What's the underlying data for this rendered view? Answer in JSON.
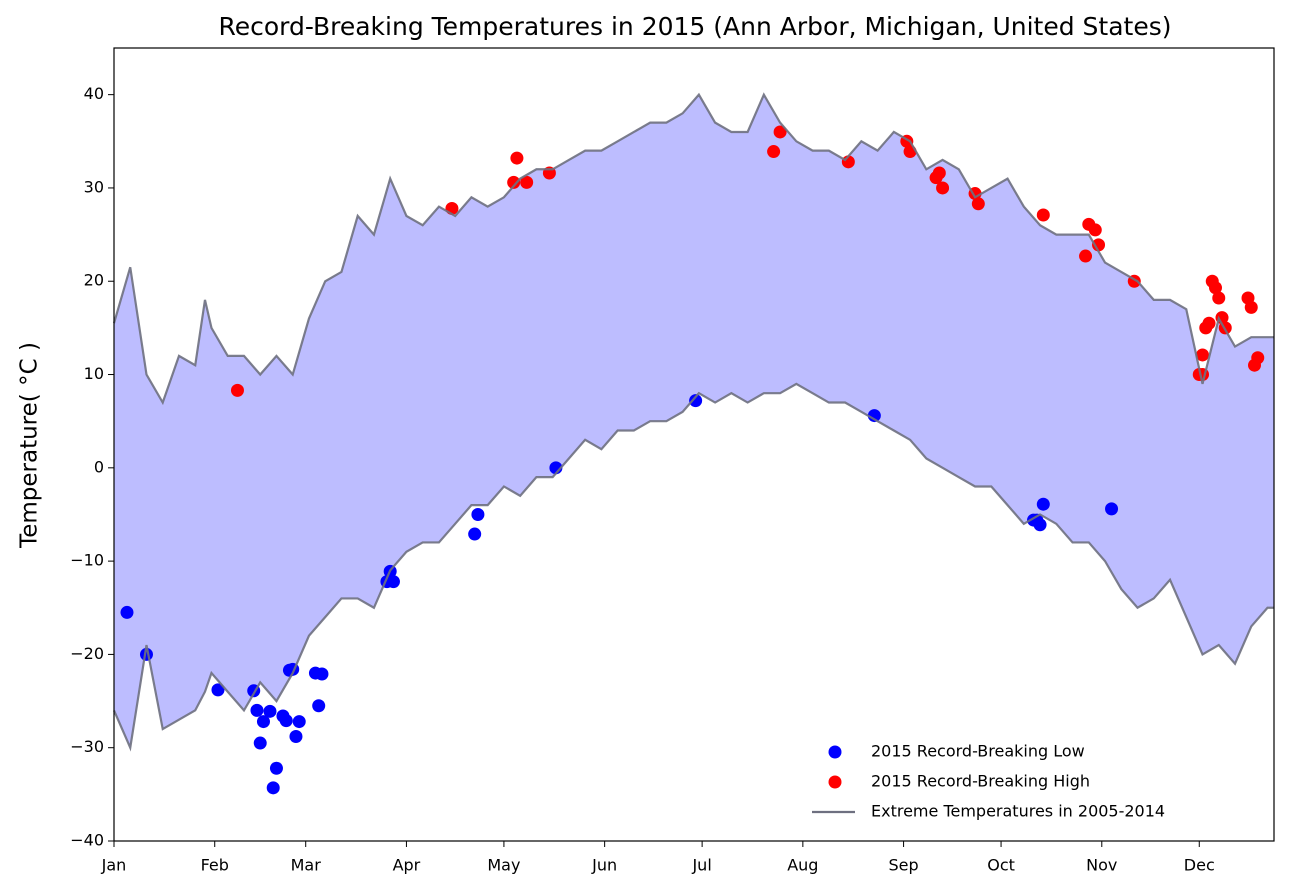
{
  "chart_data": {
    "type": "line",
    "title": "Record-Breaking Temperatures in 2015 (Ann Arbor, Michigan, United States)",
    "ylabel": "Temperature( °C )",
    "xlim": [
      0,
      357
    ],
    "xticks": [
      {
        "value": 0,
        "label": "Jan"
      },
      {
        "value": 31,
        "label": "Feb"
      },
      {
        "value": 59,
        "label": "Mar"
      },
      {
        "value": 90,
        "label": "Apr"
      },
      {
        "value": 120,
        "label": "May"
      },
      {
        "value": 151,
        "label": "Jun"
      },
      {
        "value": 181,
        "label": "Jul"
      },
      {
        "value": 212,
        "label": "Aug"
      },
      {
        "value": 243,
        "label": "Sep"
      },
      {
        "value": 273,
        "label": "Oct"
      },
      {
        "value": 304,
        "label": "Nov"
      },
      {
        "value": 334,
        "label": "Dec"
      }
    ],
    "ylim": [
      -40,
      45
    ],
    "yticks": [
      {
        "value": -40,
        "label": "−40"
      },
      {
        "value": -30,
        "label": "−30"
      },
      {
        "value": -20,
        "label": "−20"
      },
      {
        "value": -10,
        "label": "−10"
      },
      0,
      10,
      20,
      30,
      40
    ],
    "legend": "lower right",
    "fill_color": "#bdbdff",
    "series": [
      {
        "name": "2015 Record-Breaking Low",
        "type": "scatter",
        "color": "#0000ff",
        "x": [
          4,
          10,
          32,
          43,
          44,
          45,
          46,
          48,
          49,
          50,
          52,
          53,
          54,
          55,
          56,
          57,
          62,
          63,
          64,
          84,
          85,
          86,
          111,
          112,
          136,
          179,
          234,
          283,
          284,
          285,
          286,
          307
        ],
        "values": [
          -15.5,
          -20,
          -23.8,
          -23.9,
          -26,
          -29.5,
          -27.2,
          -26.1,
          -34.3,
          -32.2,
          -26.6,
          -27.1,
          -21.7,
          -21.6,
          -28.8,
          -27.2,
          -22,
          -25.5,
          -22.1,
          -12.2,
          -11.1,
          -12.2,
          -7.1,
          -5,
          0,
          7.2,
          5.6,
          -5.6,
          -5.6,
          -6.1,
          -3.9,
          -4.4
        ]
      },
      {
        "name": "2015 Record-Breaking High",
        "type": "scatter",
        "color": "#ff0000",
        "x": [
          38,
          104,
          123,
          124,
          127,
          134,
          203,
          205,
          226,
          244,
          245,
          253,
          254,
          255,
          265,
          266,
          286,
          299,
          300,
          302,
          303,
          314,
          334,
          335,
          335,
          336,
          337,
          338,
          339,
          340,
          341,
          342,
          349,
          350,
          351,
          352
        ],
        "values": [
          8.3,
          27.8,
          30.6,
          33.2,
          30.6,
          31.6,
          33.9,
          36,
          32.8,
          35,
          33.9,
          31.1,
          31.6,
          30,
          29.4,
          28.3,
          27.1,
          22.7,
          26.1,
          25.5,
          23.9,
          20,
          10,
          10,
          12.1,
          15,
          15.5,
          20,
          19.3,
          18.2,
          16.1,
          15,
          18.2,
          17.2,
          11,
          11.8
        ]
      },
      {
        "name": "Extreme Temperatures in 2005-2014",
        "type": "line",
        "color": "#6e7080",
        "x": [
          0,
          5,
          10,
          15,
          20,
          25,
          28,
          30,
          35,
          40,
          45,
          50,
          55,
          60,
          65,
          70,
          75,
          80,
          85,
          90,
          95,
          100,
          105,
          110,
          115,
          120,
          125,
          130,
          135,
          140,
          145,
          150,
          155,
          160,
          165,
          170,
          175,
          180,
          185,
          190,
          195,
          200,
          205,
          210,
          215,
          220,
          225,
          230,
          235,
          240,
          245,
          250,
          255,
          260,
          265,
          270,
          275,
          280,
          285,
          290,
          295,
          300,
          305,
          310,
          315,
          320,
          325,
          330,
          335,
          340,
          345,
          350,
          355,
          357
        ],
        "values": [
          15.5,
          21.5,
          10,
          7,
          12,
          11,
          18,
          15,
          12,
          12,
          10,
          12,
          10,
          16,
          20,
          21,
          27,
          25,
          31,
          27,
          26,
          28,
          27,
          29,
          28,
          29,
          31,
          32,
          32,
          33,
          34,
          34,
          35,
          36,
          37,
          37,
          38,
          40,
          37,
          36,
          36,
          40,
          37,
          35,
          34,
          34,
          33,
          35,
          34,
          36,
          35,
          32,
          33,
          32,
          29,
          30,
          31,
          28,
          26,
          25,
          25,
          25,
          22,
          21,
          20,
          18,
          18,
          17,
          9,
          16,
          13,
          14,
          14,
          14
        ],
        "low_values": [
          -26,
          -30,
          -19,
          -28,
          -27,
          -26,
          -24,
          -22,
          -24,
          -26,
          -23,
          -25,
          -22,
          -18,
          -16,
          -14,
          -14,
          -15,
          -11,
          -9,
          -8,
          -8,
          -6,
          -4,
          -4,
          -2,
          -3,
          -1,
          -1,
          1,
          3,
          2,
          4,
          4,
          5,
          5,
          6,
          8,
          7,
          8,
          7,
          8,
          8,
          9,
          8,
          7,
          7,
          6,
          5,
          4,
          3,
          1,
          0,
          -1,
          -2,
          -2,
          -4,
          -6,
          -5,
          -6,
          -8,
          -8,
          -10,
          -13,
          -15,
          -14,
          -12,
          -16,
          -20,
          -19,
          -21,
          -17,
          -15,
          -15
        ]
      }
    ]
  }
}
